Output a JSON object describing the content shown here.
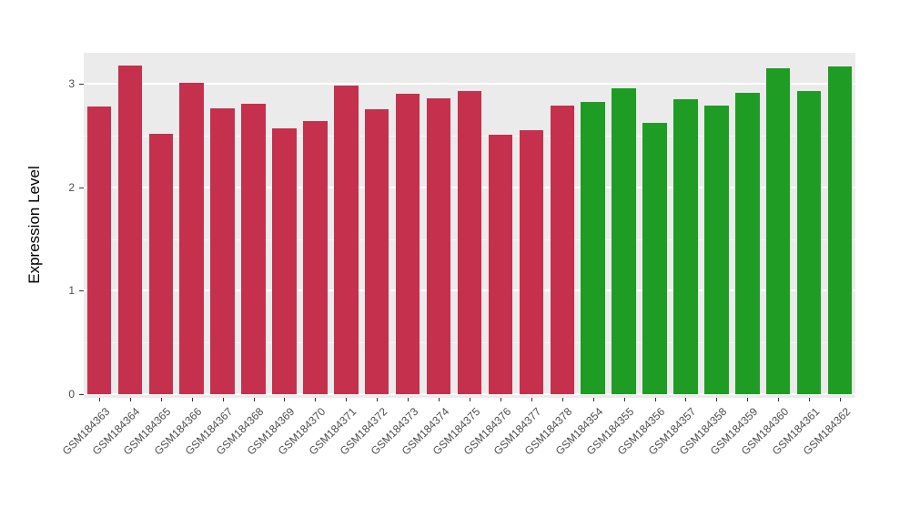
{
  "chart_data": {
    "type": "bar",
    "title": "",
    "xlabel": "",
    "ylabel": "Expression Level",
    "ylim": [
      0,
      3.3
    ],
    "yticks": [
      0,
      1,
      2,
      3
    ],
    "ytick_labels": [
      "0",
      "1",
      "2",
      "3"
    ],
    "grid": "on",
    "legend": "none",
    "panel_background": "#EBEBEB",
    "gridline_color": "#FFFFFF",
    "categories": [
      "GSM184363",
      "GSM184364",
      "GSM184365",
      "GSM184366",
      "GSM184367",
      "GSM184368",
      "GSM184369",
      "GSM184370",
      "GSM184371",
      "GSM184372",
      "GSM184373",
      "GSM184374",
      "GSM184375",
      "GSM184376",
      "GSM184377",
      "GSM184378",
      "GSM184354",
      "GSM184355",
      "GSM184356",
      "GSM184357",
      "GSM184358",
      "GSM184359",
      "GSM184360",
      "GSM184361",
      "GSM184362"
    ],
    "values": [
      2.78,
      3.18,
      2.52,
      3.01,
      2.76,
      2.81,
      2.57,
      2.64,
      2.98,
      2.75,
      2.9,
      2.86,
      2.93,
      2.51,
      2.55,
      2.79,
      2.82,
      2.96,
      2.62,
      2.85,
      2.79,
      2.91,
      3.15,
      2.93,
      3.17
    ],
    "groups": [
      {
        "name": "red-group",
        "color": "#C5304C",
        "count": 16
      },
      {
        "name": "green-group",
        "color": "#1E9C23",
        "count": 9
      }
    ]
  }
}
